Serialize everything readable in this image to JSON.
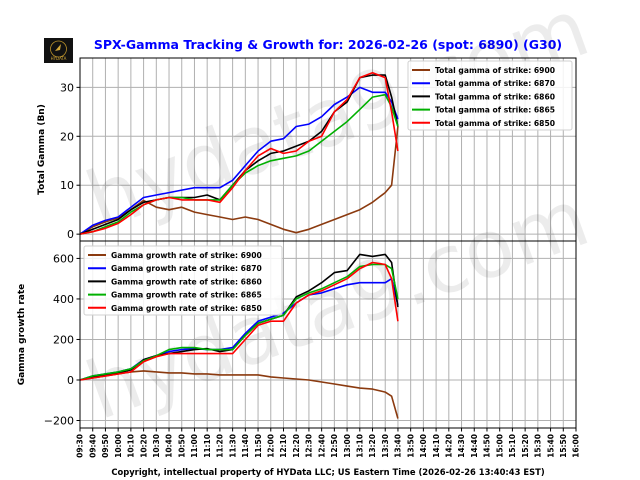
{
  "title": "SPX-Gamma Tracking & Growth for: 2026-02-26 (spot: 6890) (G30)",
  "copyright": "Copyright, intellectual property of HYData LLC; US Eastern Time (2026-02-26 13:40:43 EST)",
  "logo_text": "HYDATA",
  "watermark": "hydata9.com",
  "chart_data": [
    {
      "type": "line",
      "ylabel": "Total Gamma (Bn)",
      "ylim": [
        -1.4,
        36
      ],
      "yticks": [
        0,
        10,
        20,
        30
      ],
      "grid": true,
      "legend_placement": "top-right",
      "x": [
        "09:30",
        "09:40",
        "09:50",
        "10:00",
        "10:10",
        "10:20",
        "10:30",
        "10:40",
        "10:50",
        "11:00",
        "11:10",
        "11:20",
        "11:30",
        "11:40",
        "11:50",
        "12:00",
        "12:10",
        "12:20",
        "12:30",
        "12:40",
        "12:50",
        "13:00",
        "13:10",
        "13:20",
        "13:30",
        "13:35",
        "13:40"
      ],
      "series": [
        {
          "name": "Total gamma of strike: 6900",
          "color": "#8b3a0f",
          "values": [
            0,
            1.5,
            2.5,
            3.3,
            5,
            6.9,
            5.5,
            5,
            5.5,
            4.5,
            4,
            3.5,
            3,
            3.5,
            3,
            2,
            1,
            0.3,
            1,
            2,
            3,
            4,
            5,
            6.5,
            8.5,
            10,
            22
          ]
        },
        {
          "name": "Total gamma of strike: 6870",
          "color": "#0000ff",
          "values": [
            0,
            1.8,
            2.8,
            3.5,
            5.5,
            7.5,
            8,
            8.5,
            9,
            9.5,
            9.5,
            9.5,
            11,
            14,
            17,
            19,
            19.5,
            22,
            22.5,
            24,
            26.5,
            28,
            30,
            29,
            29,
            27,
            23.5
          ]
        },
        {
          "name": "Total gamma of strike: 6860",
          "color": "#000000",
          "values": [
            0,
            1,
            2,
            3,
            5,
            6.5,
            7,
            7.5,
            7.5,
            7.5,
            8,
            7,
            10,
            13,
            15,
            16.5,
            17,
            18,
            19,
            21,
            25,
            27,
            32,
            32.5,
            32.5,
            28,
            22
          ]
        },
        {
          "name": "Total gamma of strike: 6865",
          "color": "#00b000",
          "values": [
            0,
            0.5,
            1.5,
            2.5,
            4.5,
            6,
            7,
            7.5,
            7.5,
            7,
            7,
            7,
            10,
            12.5,
            14,
            15,
            15.5,
            16,
            17,
            19,
            21,
            23,
            25.5,
            28,
            28.5,
            26,
            22
          ]
        },
        {
          "name": "Total gamma of strike: 6850",
          "color": "#ff0000",
          "values": [
            0,
            0.5,
            1.2,
            2.2,
            4,
            6,
            7,
            7.5,
            7,
            7,
            7,
            6.5,
            9.5,
            13,
            16,
            17.5,
            16.5,
            17,
            19,
            20,
            25,
            27.5,
            32,
            33,
            32,
            25,
            17
          ]
        }
      ]
    },
    {
      "type": "line",
      "ylabel": "Gamma growth rate",
      "ylim": [
        -237,
        686
      ],
      "yticks": [
        -200,
        0,
        200,
        400,
        600
      ],
      "grid": true,
      "legend_placement": "top-left",
      "x": [
        "09:30",
        "09:40",
        "09:50",
        "10:00",
        "10:10",
        "10:20",
        "10:30",
        "10:40",
        "10:50",
        "11:00",
        "11:10",
        "11:20",
        "11:30",
        "11:40",
        "11:50",
        "12:00",
        "12:10",
        "12:20",
        "12:30",
        "12:40",
        "12:50",
        "13:00",
        "13:10",
        "13:20",
        "13:30",
        "13:35",
        "13:40"
      ],
      "xticks": [
        "09:30",
        "09:40",
        "09:50",
        "10:00",
        "10:10",
        "10:20",
        "10:30",
        "10:40",
        "10:50",
        "11:00",
        "11:10",
        "11:20",
        "11:30",
        "11:40",
        "11:50",
        "12:00",
        "12:10",
        "12:20",
        "12:30",
        "12:40",
        "12:50",
        "13:00",
        "13:10",
        "13:20",
        "13:30",
        "13:40",
        "13:50",
        "14:00",
        "14:10",
        "14:20",
        "14:30",
        "14:40",
        "14:50",
        "15:00",
        "15:10",
        "15:20",
        "15:30",
        "15:40",
        "15:50",
        "16:00"
      ],
      "series": [
        {
          "name": "Gamma growth rate of strike: 6900",
          "color": "#8b3a0f",
          "values": [
            0,
            10,
            20,
            30,
            40,
            45,
            40,
            35,
            35,
            30,
            30,
            25,
            25,
            25,
            25,
            15,
            10,
            5,
            0,
            -10,
            -20,
            -30,
            -40,
            -45,
            -60,
            -80,
            -190
          ]
        },
        {
          "name": "Gamma growth rate of strike: 6870",
          "color": "#0000ff",
          "values": [
            0,
            20,
            30,
            40,
            55,
            100,
            120,
            140,
            150,
            155,
            150,
            150,
            160,
            230,
            290,
            310,
            330,
            380,
            420,
            430,
            450,
            470,
            480,
            480,
            480,
            500,
            370
          ]
        },
        {
          "name": "Gamma growth rate of strike: 6860",
          "color": "#000000",
          "values": [
            0,
            15,
            25,
            35,
            50,
            100,
            120,
            130,
            140,
            150,
            155,
            140,
            150,
            220,
            280,
            300,
            320,
            410,
            440,
            480,
            530,
            540,
            620,
            610,
            620,
            580,
            360
          ]
        },
        {
          "name": "Gamma growth rate of strike: 6865",
          "color": "#00b000",
          "values": [
            0,
            20,
            30,
            40,
            55,
            95,
            120,
            150,
            160,
            160,
            150,
            150,
            150,
            220,
            280,
            300,
            320,
            400,
            430,
            450,
            480,
            510,
            560,
            570,
            570,
            550,
            400
          ]
        },
        {
          "name": "Gamma growth rate of strike: 6850",
          "color": "#ff0000",
          "values": [
            0,
            10,
            20,
            30,
            40,
            90,
            115,
            130,
            130,
            130,
            130,
            130,
            130,
            200,
            270,
            290,
            290,
            380,
            420,
            440,
            470,
            500,
            550,
            580,
            570,
            500,
            290
          ]
        }
      ]
    }
  ]
}
